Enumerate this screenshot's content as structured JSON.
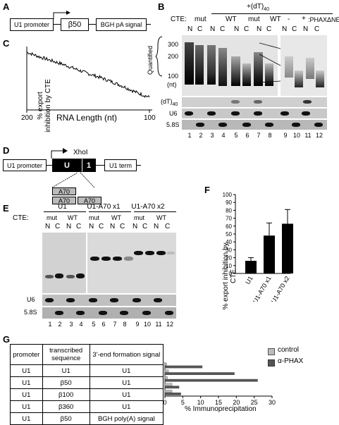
{
  "panelA": {
    "label": "A",
    "promoter": "U1 promoter",
    "insert": "β50",
    "signal": "BGH pA signal"
  },
  "panelB": {
    "label": "B",
    "dt_header": "+(dT)",
    "dt_sub": "40",
    "cte_label": "CTE:",
    "mut": "mut",
    "wt": "WT",
    "minus": "-",
    "plus": "+",
    "phax": ":PHAXΔNES",
    "n": "N",
    "c": "C",
    "size_300": "300",
    "size_200": "200",
    "size_100": "100",
    "nt": "(nt)",
    "quantified": "Quantified",
    "dt_row": "(dT)",
    "dt_row_sub": "40",
    "u6": "U6",
    "s58": "5.8S",
    "lanes": [
      "1",
      "2",
      "3",
      "4",
      "5",
      "6",
      "7",
      "8",
      "9",
      "10",
      "11",
      "12"
    ]
  },
  "panelC": {
    "label": "C",
    "ylabel": "% export inhibition by CTE",
    "xlabel": "RNA Length (nt)",
    "xtick_left": "200",
    "xtick_right": "100"
  },
  "panelD": {
    "label": "D",
    "xhoi": "XhoI",
    "promoter": "U1 promoter",
    "u": "U",
    "one": "1",
    "term": "U1 term",
    "a70": "A70"
  },
  "panelE": {
    "label": "E",
    "u1": "U1",
    "u1a1": "U1-A70 x1",
    "u1a2": "U1-A70 x2",
    "cte_label": "CTE:",
    "mut": "mut",
    "wt": "WT",
    "n": "N",
    "c": "C",
    "u6": "U6",
    "s58": "5.8S",
    "lanes": [
      "1",
      "2",
      "3",
      "4",
      "5",
      "6",
      "7",
      "8",
      "9",
      "10",
      "11",
      "12"
    ]
  },
  "panelF": {
    "label": "F",
    "ylabel": "% export inhibition by CTE"
  },
  "panelG": {
    "label": "G",
    "headers": [
      "promoter",
      "transcribed sequence",
      "3'-end formation signal"
    ],
    "rows": [
      [
        "U1",
        "U1",
        "U1"
      ],
      [
        "U1",
        "β50",
        "U1"
      ],
      [
        "U1",
        "β100",
        "U1"
      ],
      [
        "U1",
        "β360",
        "U1"
      ],
      [
        "U1",
        "β50",
        "BGH poly(A) signal"
      ]
    ],
    "legend_control": "control",
    "legend_phax": "α-PHAX",
    "xlabel": "% Immunoprecipitation"
  },
  "colors": {
    "bar_dark": "#555555",
    "bar_light": "#bbbbbb",
    "gel_bg": "#d8d8d8"
  },
  "chart_data": [
    {
      "type": "line",
      "panel": "C",
      "xlabel": "RNA Length (nt)",
      "ylabel": "% export inhibition by CTE",
      "x": [
        200,
        190,
        180,
        170,
        160,
        150,
        140,
        130,
        120,
        110,
        100
      ],
      "y": [
        100,
        92,
        85,
        78,
        70,
        62,
        55,
        47,
        38,
        28,
        20
      ]
    },
    {
      "type": "bar",
      "panel": "F",
      "categories": [
        "U1",
        "U1-A70 x1",
        "U1-A70 x2"
      ],
      "values": [
        16,
        48,
        63
      ],
      "errors": [
        4,
        16,
        18
      ],
      "ylim": [
        0,
        100
      ],
      "yticks": [
        0,
        10,
        20,
        30,
        40,
        50,
        60,
        70,
        80,
        90,
        100
      ],
      "ylabel": "% export inhibition by CTE"
    },
    {
      "type": "bar",
      "panel": "G",
      "orientation": "horizontal",
      "categories": [
        "U1/U1/U1",
        "U1/β50/U1",
        "U1/β100/U1",
        "U1/β360/U1",
        "U1/β50/BGH"
      ],
      "series": [
        {
          "name": "control",
          "values": [
            0.5,
            1.0,
            0.7,
            2.0,
            2.0
          ]
        },
        {
          "name": "α-PHAX",
          "values": [
            10.5,
            19.5,
            26.0,
            4.0,
            4.5
          ]
        }
      ],
      "xlim": [
        0,
        30
      ],
      "xticks": [
        0,
        5,
        10,
        15,
        20,
        25,
        30
      ],
      "xlabel": "% Immunoprecipitation"
    }
  ]
}
